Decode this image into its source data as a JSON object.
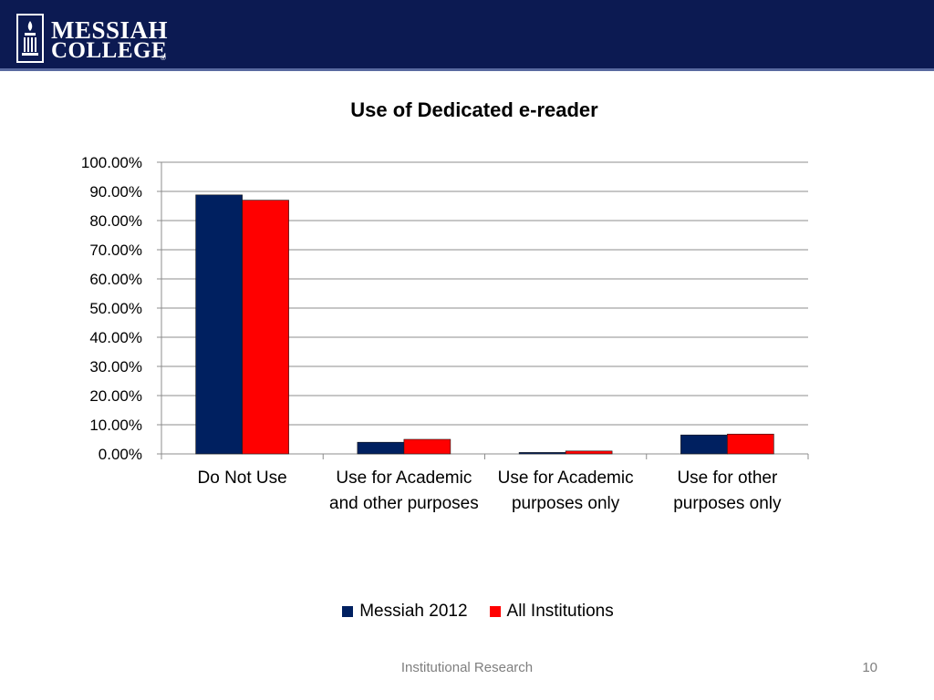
{
  "header": {
    "logo_line1": "MESSIAH",
    "logo_line2": "COLLEGE",
    "logo_tm": "®",
    "background_color": "#0c1a52"
  },
  "chart_data": {
    "type": "bar",
    "title": "Use of Dedicated e-reader",
    "xlabel": "",
    "ylabel": "",
    "categories": [
      "Do Not Use",
      "Use for Academic and other purposes",
      "Use for Academic purposes only",
      "Use for other purposes only"
    ],
    "series": [
      {
        "name": "Messiah 2012",
        "color": "#002060",
        "values": [
          88.8,
          4.0,
          0.5,
          6.5
        ]
      },
      {
        "name": "All Institutions",
        "color": "#ff0000",
        "values": [
          87.0,
          5.0,
          1.0,
          6.8
        ]
      }
    ],
    "ylim": [
      0,
      100
    ],
    "yticks": [
      "0.00%",
      "10.00%",
      "20.00%",
      "30.00%",
      "40.00%",
      "50.00%",
      "60.00%",
      "70.00%",
      "80.00%",
      "90.00%",
      "100.00%"
    ],
    "grid": true,
    "legend_position": "bottom"
  },
  "footer": {
    "text": "Institutional Research",
    "page_number": "10"
  }
}
